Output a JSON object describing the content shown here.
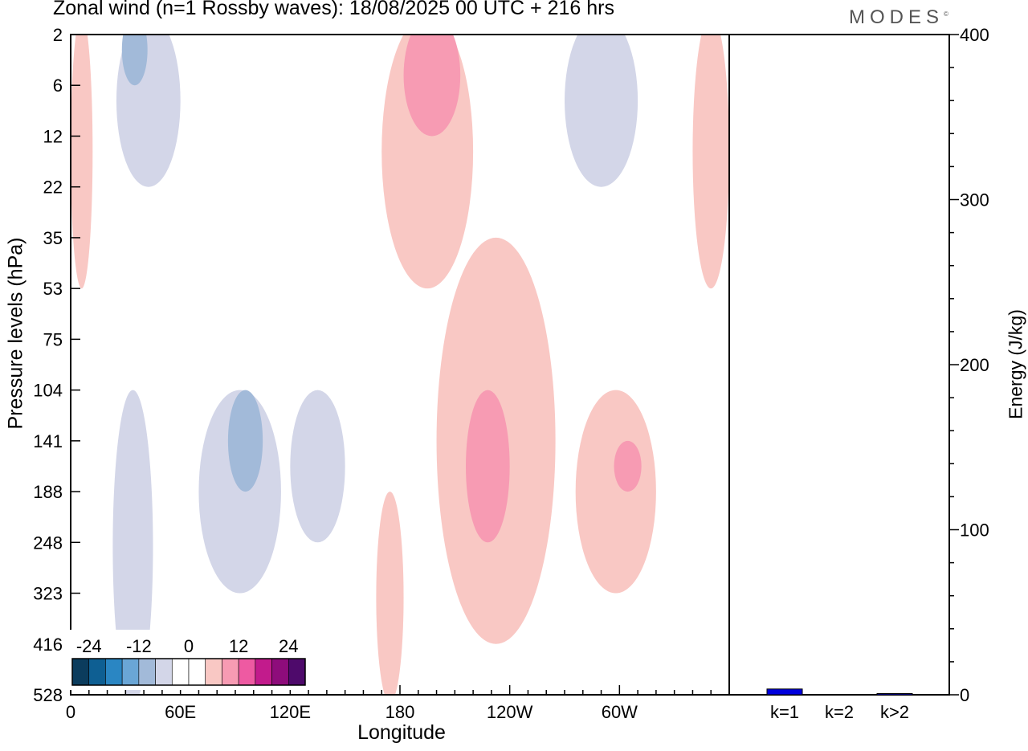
{
  "chart_data": [
    {
      "type": "heatmap",
      "title": "Zonal wind (n=1 Rossby waves):  18/08/2025  00 UTC  + 216 hrs",
      "xlabel": "Longitude",
      "ylabel": "Pressure levels (hPa)",
      "x_tick_labels": [
        "0",
        "60E",
        "120E",
        "180",
        "120W",
        "60W"
      ],
      "y_tick_labels": [
        "2",
        "6",
        "12",
        "22",
        "35",
        "53",
        "75",
        "104",
        "141",
        "188",
        "248",
        "323",
        "416",
        "528"
      ],
      "colorbar": {
        "tick_labels": [
          "-24",
          "-12",
          "0",
          "12",
          "24"
        ],
        "colors": [
          "#0b3c5d",
          "#0e5f93",
          "#2a86c3",
          "#6aa6d6",
          "#a2bad9",
          "#d3d6e8",
          "#ffffff",
          "#ffffff",
          "#f9c8c4",
          "#f79bb3",
          "#ee5aa2",
          "#c21b8c",
          "#8e0c7b",
          "#4e0a6b"
        ]
      },
      "regions": [
        {
          "sign": "positive",
          "level": 1,
          "lon_range": [
            0,
            12
          ],
          "levels": [
            "2",
            "53"
          ]
        },
        {
          "sign": "negative",
          "level": 1,
          "lon_range": [
            25,
            60
          ],
          "levels": [
            "2",
            "22"
          ]
        },
        {
          "sign": "negative",
          "level": 2,
          "lon_range": [
            28,
            42
          ],
          "levels": [
            "2",
            "6"
          ]
        },
        {
          "sign": "positive",
          "level": 1,
          "lon_range": [
            170,
            220
          ],
          "levels": [
            "2",
            "53"
          ]
        },
        {
          "sign": "positive",
          "level": 2,
          "lon_range": [
            182,
            213
          ],
          "levels": [
            "2",
            "12"
          ]
        },
        {
          "sign": "negative",
          "level": 1,
          "lon_range": [
            270,
            310
          ],
          "levels": [
            "2",
            "22"
          ]
        },
        {
          "sign": "positive",
          "level": 1,
          "lon_range": [
            340,
            360
          ],
          "levels": [
            "2",
            "53"
          ]
        },
        {
          "sign": "negative",
          "level": 1,
          "lon_range": [
            70,
            115
          ],
          "levels": [
            "104",
            "323"
          ]
        },
        {
          "sign": "negative",
          "level": 2,
          "lon_range": [
            86,
            105
          ],
          "levels": [
            "104",
            "188"
          ]
        },
        {
          "sign": "negative",
          "level": 1,
          "lon_range": [
            120,
            150
          ],
          "levels": [
            "104",
            "248"
          ]
        },
        {
          "sign": "negative",
          "level": 1,
          "lon_range": [
            23,
            45
          ],
          "levels": [
            "104",
            "528"
          ]
        },
        {
          "sign": "positive",
          "level": 1,
          "lon_range": [
            200,
            265
          ],
          "levels": [
            "35",
            "416"
          ]
        },
        {
          "sign": "positive",
          "level": 2,
          "lon_range": [
            216,
            240
          ],
          "levels": [
            "104",
            "248"
          ]
        },
        {
          "sign": "positive",
          "level": 1,
          "lon_range": [
            276,
            320
          ],
          "levels": [
            "104",
            "323"
          ]
        },
        {
          "sign": "positive",
          "level": 2,
          "lon_range": [
            297,
            312
          ],
          "levels": [
            "141",
            "188"
          ]
        },
        {
          "sign": "positive",
          "level": 1,
          "lon_range": [
            167,
            182
          ],
          "levels": [
            "188",
            "528"
          ]
        }
      ]
    },
    {
      "type": "bar",
      "ylabel": "Energy (J/kg)",
      "categories": [
        "k=1",
        "k=2",
        "k>2"
      ],
      "values": [
        3.5,
        0,
        0.5
      ],
      "ylim": [
        0,
        400
      ],
      "y_tick_labels": [
        "0",
        "100",
        "200",
        "300",
        "400"
      ],
      "bar_color": "#0000dd"
    }
  ],
  "logo": "MODES"
}
